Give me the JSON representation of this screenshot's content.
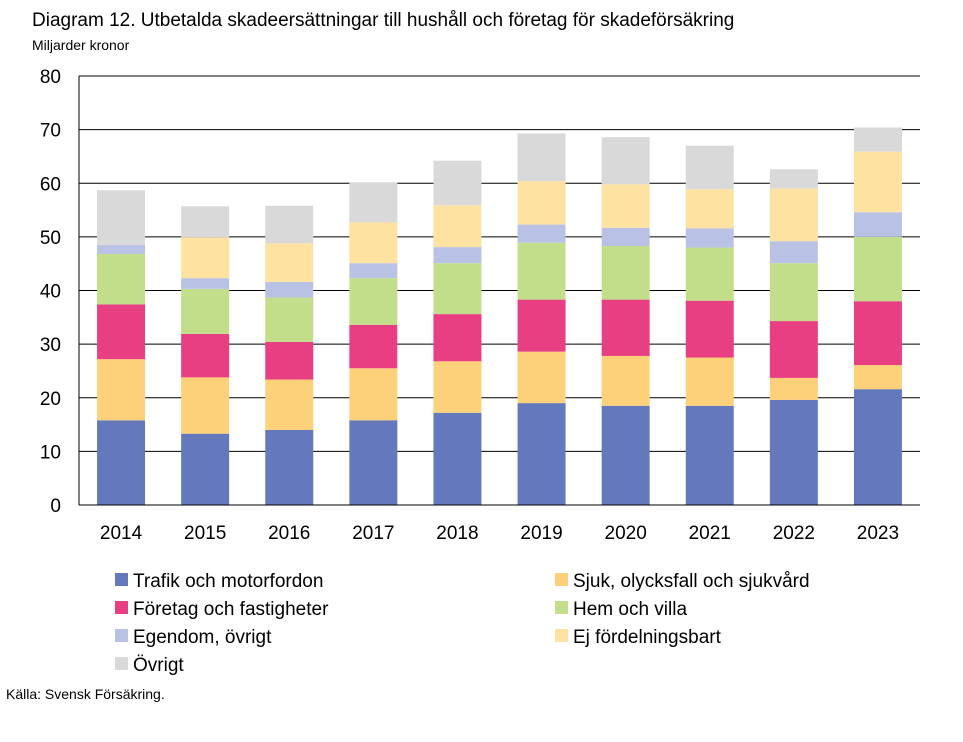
{
  "header": {
    "title": "Diagram 12. Utbetalda skadeersättningar till hushåll och företag för skadeförsäkring",
    "unit": "Miljarder kronor"
  },
  "footer": {
    "source": "Källa: Svensk Försäkring."
  },
  "chart_data": {
    "type": "bar",
    "stacked": true,
    "title": "Diagram 12. Utbetalda skadeersättningar till hushåll och företag för skadeförsäkring",
    "ylabel": "Miljarder kronor",
    "xlabel": "",
    "ylim": [
      0,
      80
    ],
    "yticks": [
      "0",
      "10",
      "20",
      "30",
      "40",
      "50",
      "60",
      "70",
      "80"
    ],
    "grid": true,
    "legend_position": "bottom",
    "categories": [
      "2014",
      "2015",
      "2016",
      "2017",
      "2018",
      "2019",
      "2020",
      "2021",
      "2022",
      "2023"
    ],
    "series": [
      {
        "name": "Trafik och motorfordon",
        "color": "#6479bb",
        "values": [
          15.8,
          13.3,
          14.0,
          15.8,
          17.2,
          19.0,
          18.5,
          18.5,
          19.6,
          21.6
        ]
      },
      {
        "name": "Sjuk, olycksfall och sjukvård",
        "color": "#fdd07a",
        "values": [
          11.4,
          10.5,
          9.4,
          9.7,
          9.6,
          9.6,
          9.3,
          9.0,
          4.1,
          4.5
        ]
      },
      {
        "name": "Företag och fastigheter",
        "color": "#e83e82",
        "values": [
          10.2,
          8.1,
          7.0,
          8.1,
          8.8,
          9.7,
          10.5,
          10.6,
          10.6,
          11.9
        ]
      },
      {
        "name": "Hem och villa",
        "color": "#c3de8b",
        "values": [
          9.4,
          8.4,
          8.3,
          8.7,
          9.5,
          10.6,
          10.0,
          9.9,
          10.8,
          12.0
        ]
      },
      {
        "name": "Egendom, övrigt",
        "color": "#b9c2e4",
        "values": [
          1.7,
          2.0,
          2.9,
          2.8,
          3.0,
          3.4,
          3.4,
          3.6,
          4.1,
          4.6
        ]
      },
      {
        "name": "Ej fördelningsbart",
        "color": "#fee2a2",
        "values": [
          0,
          7.6,
          7.2,
          7.6,
          7.8,
          8.1,
          8.1,
          7.3,
          9.8,
          11.3
        ]
      },
      {
        "name": "Övrigt",
        "color": "#d9d9d9",
        "values": [
          10.2,
          5.8,
          7.0,
          7.5,
          8.3,
          8.9,
          8.8,
          8.1,
          3.6,
          4.5
        ]
      }
    ]
  }
}
